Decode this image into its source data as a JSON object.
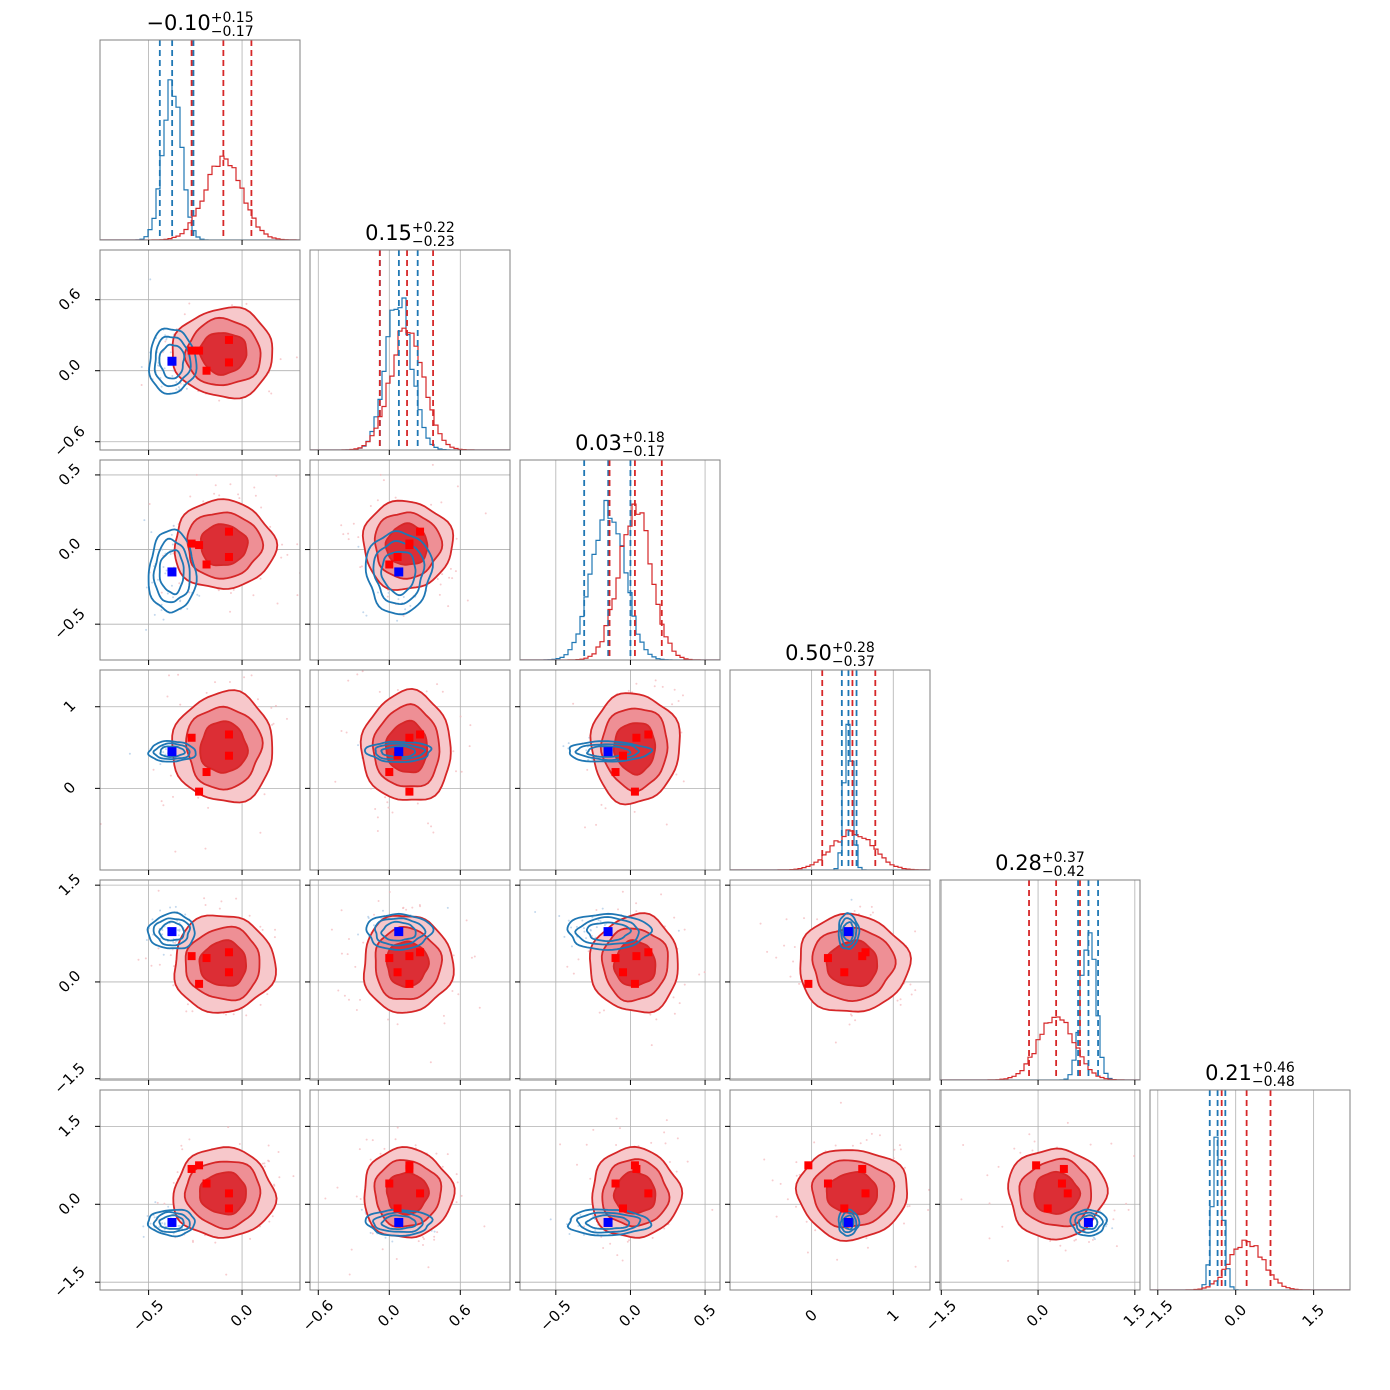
{
  "chart_data": {
    "type": "corner",
    "n_params": 6,
    "colors": {
      "prior": "#d62728",
      "posterior": "#1f77b4",
      "truth_blue": "#0000ff",
      "truth_red": "#ff0000"
    },
    "grid": true,
    "param_titles": [
      {
        "median": "−0.10",
        "plus": "+0.15",
        "minus": "−0.17"
      },
      {
        "median": "0.15",
        "plus": "+0.22",
        "minus": "−0.23"
      },
      {
        "median": "0.03",
        "plus": "+0.18",
        "minus": "−0.17"
      },
      {
        "median": "0.50",
        "plus": "+0.28",
        "minus": "−0.37"
      },
      {
        "median": "0.28",
        "plus": "+0.37",
        "minus": "−0.42"
      },
      {
        "median": "0.21",
        "plus": "+0.46",
        "minus": "−0.48"
      }
    ],
    "axes": [
      {
        "range": [
          -0.76,
          0.31
        ],
        "ticks": [
          -0.5,
          0.0
        ],
        "tick_labels": [
          "−0.5",
          "0.0"
        ]
      },
      {
        "range": [
          -0.67,
          1.02
        ],
        "ticks": [
          -0.6,
          0.0,
          0.6
        ],
        "tick_labels": [
          "−0.6",
          "0.0",
          "0.6"
        ]
      },
      {
        "range": [
          -0.74,
          0.6
        ],
        "ticks": [
          -0.5,
          0.0,
          0.5
        ],
        "tick_labels": [
          "−0.5",
          "0.0",
          "0.5"
        ]
      },
      {
        "range": [
          -1.0,
          1.45
        ],
        "ticks": [
          0,
          1
        ],
        "tick_labels": [
          "0",
          "1"
        ]
      },
      {
        "range": [
          -1.52,
          1.58
        ],
        "ticks": [
          -1.5,
          0.0,
          1.5
        ],
        "tick_labels": [
          "−1.5",
          "0.0",
          "1.5"
        ]
      },
      {
        "range": [
          -1.65,
          2.2
        ],
        "ticks": [
          -1.5,
          0.0,
          1.5
        ],
        "tick_labels": [
          "−1.5",
          "0.0",
          "1.5"
        ]
      }
    ],
    "posterior": {
      "mean": [
        -0.375,
        0.08,
        -0.15,
        0.45,
        0.78,
        -0.35
      ],
      "sd": [
        0.05,
        0.11,
        0.11,
        0.05,
        0.11,
        0.1
      ],
      "quantiles": [
        [
          -0.44,
          -0.26
        ],
        [
          -0.08,
          0.24
        ],
        [
          -0.31,
          0.0
        ],
        [
          0.37,
          0.55
        ],
        [
          0.62,
          0.93
        ],
        [
          -0.5,
          -0.2
        ]
      ]
    },
    "prior": {
      "mean": [
        -0.1,
        0.15,
        0.03,
        0.5,
        0.28,
        0.21
      ],
      "sd": [
        0.1,
        0.14,
        0.11,
        0.25,
        0.28,
        0.32
      ],
      "quantiles": [
        [
          -0.27,
          0.05
        ],
        [
          -0.08,
          0.37
        ],
        [
          -0.14,
          0.21
        ],
        [
          0.13,
          0.78
        ],
        [
          -0.14,
          0.65
        ],
        [
          -0.27,
          0.67
        ]
      ]
    },
    "truth_blue": [
      -0.375,
      0.08,
      -0.15,
      0.45,
      0.78,
      -0.35
    ],
    "truth_red": [
      [
        -0.27,
        0.17,
        0.04,
        0.62,
        0.4,
        0.68
      ],
      [
        -0.07,
        0.26,
        0.12,
        0.66,
        0.46,
        0.21
      ],
      [
        -0.07,
        0.07,
        -0.05,
        0.4,
        0.15,
        -0.08
      ],
      [
        -0.19,
        0.0,
        -0.1,
        0.2,
        0.37,
        0.4
      ],
      [
        -0.23,
        0.17,
        0.03,
        -0.04,
        -0.03,
        0.75
      ]
    ]
  }
}
